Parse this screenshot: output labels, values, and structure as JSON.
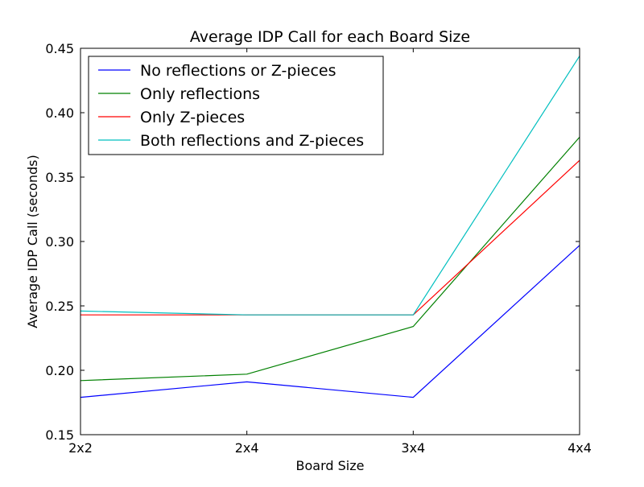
{
  "chart_data": {
    "type": "line",
    "title": "Average IDP Call for each Board Size",
    "xlabel": "Board Size",
    "ylabel": "Average IDP Call (seconds)",
    "categories": [
      "2x2",
      "2x4",
      "3x4",
      "4x4"
    ],
    "ylim": [
      0.15,
      0.45
    ],
    "yticks": [
      "0.15",
      "0.20",
      "0.25",
      "0.30",
      "0.35",
      "0.40",
      "0.45"
    ],
    "grid": false,
    "legend_position": "top-left",
    "series": [
      {
        "name": "No reflections or Z-pieces",
        "color": "#0000ff",
        "values": [
          0.179,
          0.191,
          0.179,
          0.297
        ]
      },
      {
        "name": "Only reflections",
        "color": "#008000",
        "values": [
          0.192,
          0.197,
          0.234,
          0.381
        ]
      },
      {
        "name": "Only Z-pieces",
        "color": "#ff0000",
        "values": [
          0.243,
          0.243,
          0.243,
          0.363
        ]
      },
      {
        "name": "Both reflections and Z-pieces",
        "color": "#00bfbf",
        "values": [
          0.246,
          0.243,
          0.243,
          0.444
        ]
      }
    ]
  }
}
